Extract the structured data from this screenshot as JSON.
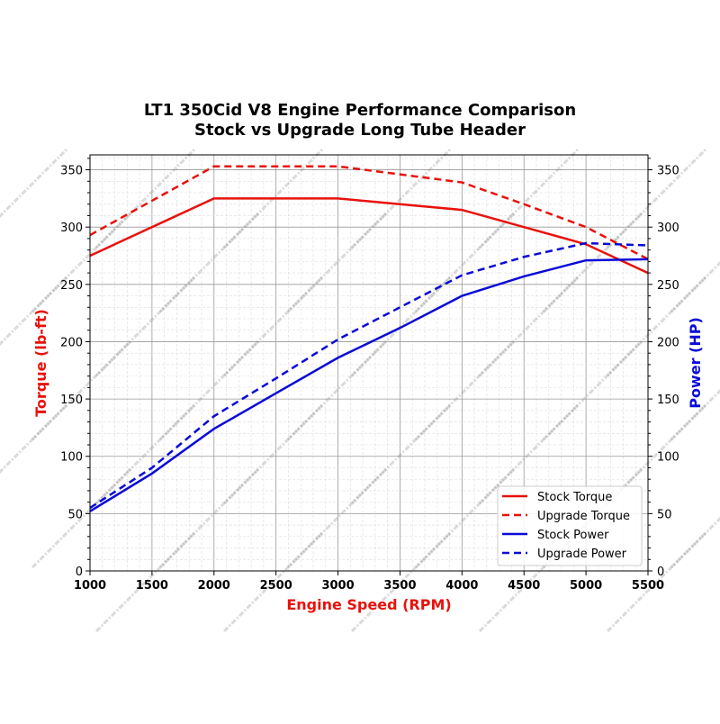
{
  "chart_data": {
    "type": "line",
    "title": "LT1 350Cid V8 Engine Performance Comparison",
    "subtitle": "Stock vs Upgrade Long Tube Header",
    "xlabel": "Engine Speed (RPM)",
    "ylabel_left": "Torque (lb-ft)",
    "ylabel_right": "Power (HP)",
    "xlim": [
      1000,
      5500
    ],
    "ylim_left": [
      0,
      363
    ],
    "ylim_right": [
      0,
      363
    ],
    "xticks": [
      1000,
      1500,
      2000,
      2500,
      3000,
      3500,
      4000,
      4500,
      5000,
      5500
    ],
    "yticks": [
      0,
      50,
      100,
      150,
      200,
      250,
      300,
      350
    ],
    "grid": true,
    "legend_position": "lower-right",
    "watermark": "Suncent Header-Turbo Upgrade",
    "x": [
      1000,
      1500,
      2000,
      2500,
      3000,
      3500,
      4000,
      4500,
      5000,
      5500
    ],
    "series": [
      {
        "name": "Stock Torque",
        "axis": "left",
        "color": "#e8120c",
        "style": "solid",
        "values": [
          275,
          300,
          325,
          325,
          325,
          320,
          315,
          300,
          285,
          260
        ]
      },
      {
        "name": "Upgrade Torque",
        "axis": "left",
        "color": "#e8120c",
        "style": "dashed",
        "values": [
          293,
          323,
          353,
          353,
          353,
          346,
          339,
          320,
          300,
          272
        ]
      },
      {
        "name": "Stock Power",
        "axis": "right",
        "color": "#0a0ad8",
        "style": "solid",
        "values": [
          52,
          85,
          124,
          155,
          186,
          212,
          240,
          257,
          271,
          272
        ]
      },
      {
        "name": "Upgrade Power",
        "axis": "right",
        "color": "#0a0ad8",
        "style": "dashed",
        "values": [
          55,
          90,
          135,
          168,
          202,
          230,
          258,
          274,
          286,
          284
        ]
      }
    ]
  }
}
